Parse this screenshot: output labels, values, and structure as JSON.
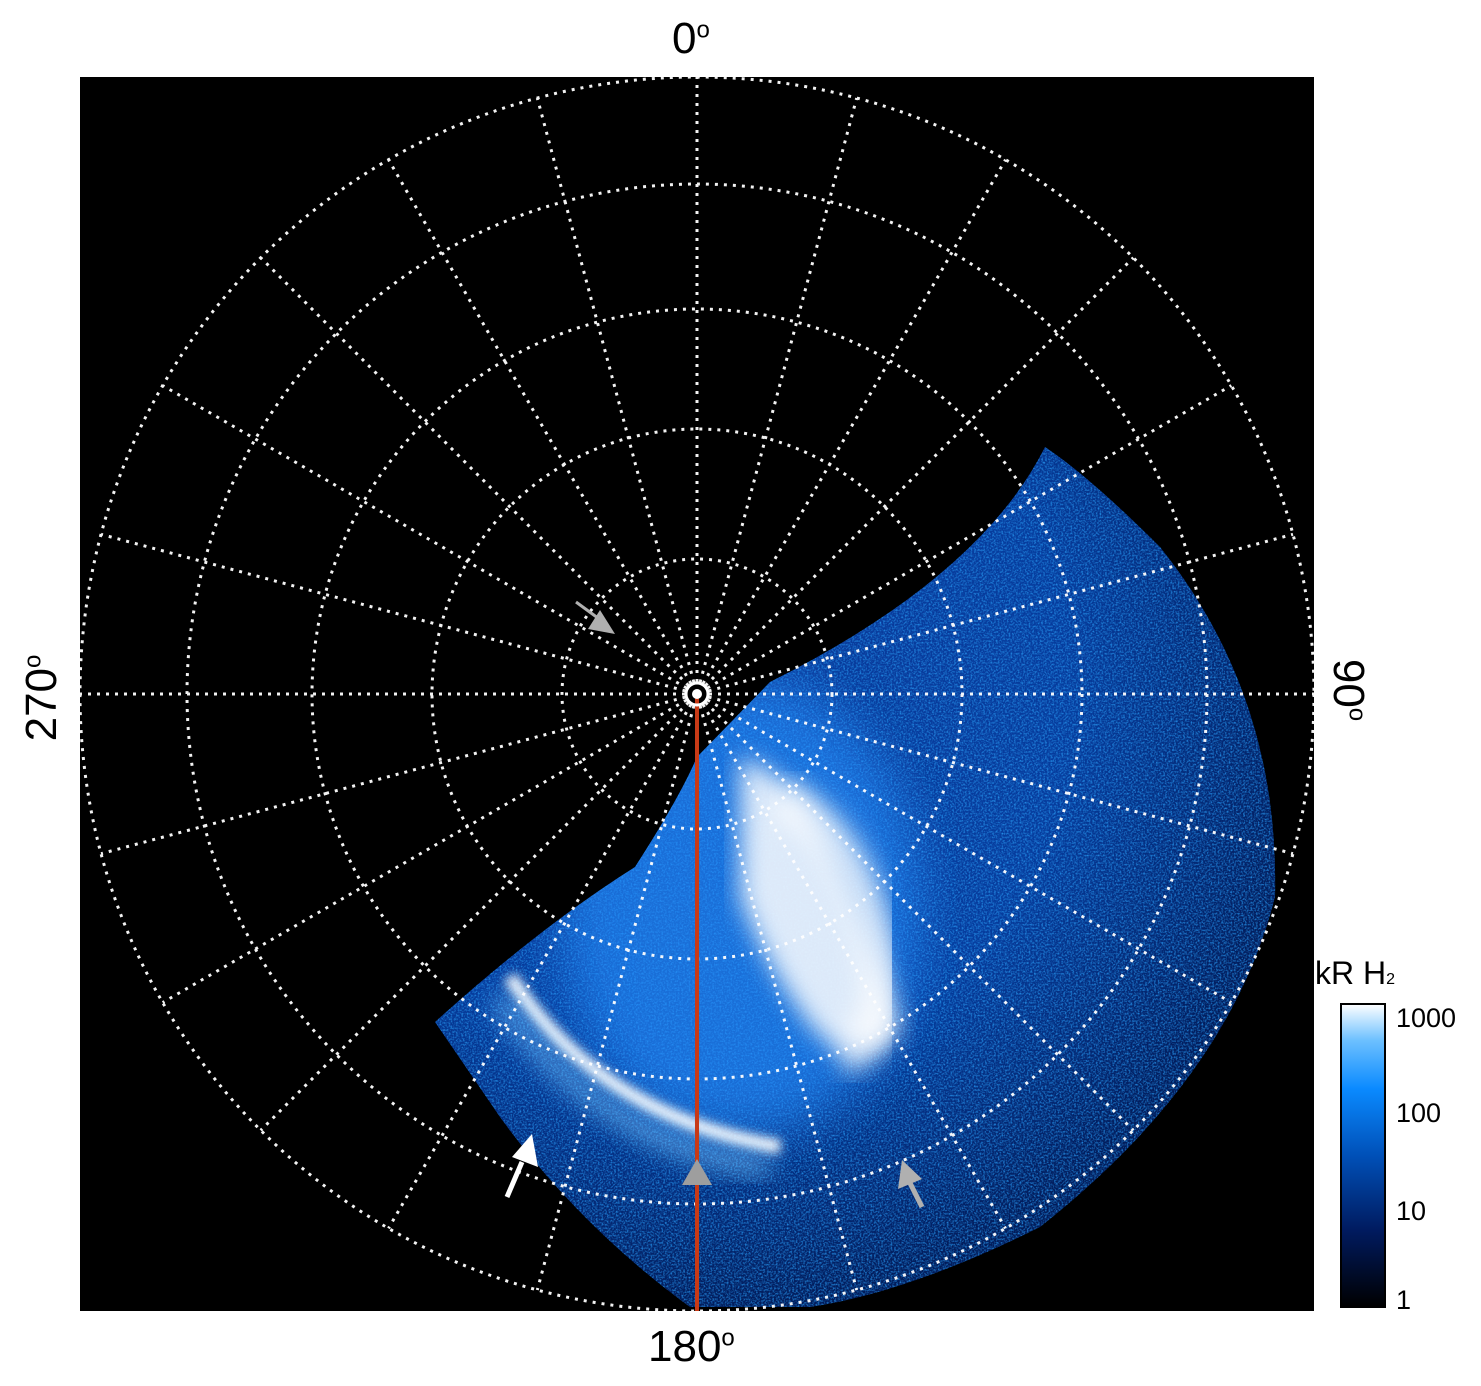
{
  "axes": {
    "top_label": "0",
    "bottom_label": "180",
    "left_label": "270",
    "right_label": "90",
    "degree_symbol": "o"
  },
  "colorbar": {
    "title_main": "kR H",
    "title_sub": "2",
    "ticks": [
      "1000",
      "100",
      "10",
      "1"
    ],
    "scale": "log",
    "range": [
      1,
      1000
    ],
    "colors": [
      "#000000",
      "#001a5e",
      "#0050b8",
      "#0a8aff",
      "#6cc0ff",
      "#ffffff"
    ]
  },
  "colors": {
    "background": "#000000",
    "grid": "#ffffff",
    "meridian_line": "#c83a16",
    "arrow_white": "#ffffff",
    "arrow_gray": "#b0b0b0",
    "aurora_main": "#ffffff",
    "aurora_glow": "#1f86ff"
  },
  "icons": [
    "arrow-white-icon",
    "arrow-gray-icon",
    "arrow-gray-triangle-icon",
    "pole-marker-icon"
  ]
}
